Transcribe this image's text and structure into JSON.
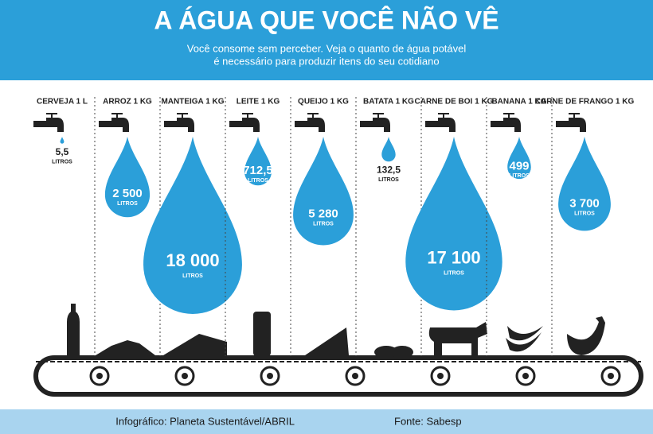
{
  "chart_data": {
    "type": "drop",
    "title": "A ÁGUA QUE VOCÊ NÃO VÊ",
    "subtitle": [
      "Você consome sem perceber. Veja o quanto de água potável",
      "é necessário para produzir itens do seu cotidiano"
    ],
    "categories": [
      "CERVEJA 1 L",
      "ARROZ 1 KG",
      "MANTEIGA 1 KG",
      "LEITE 1 KG",
      "QUEIJO 1 KG",
      "BATATA 1 KG",
      "CARNE DE BOI 1 KG",
      "BANANA 1 KG",
      "CARNE DE FRANGO 1 KG"
    ],
    "values": [
      5.5,
      2500,
      18000,
      712.5,
      5280,
      132.5,
      17100,
      499,
      3700
    ],
    "value_labels": [
      "5,5",
      "2 500",
      "18 000",
      "712,5",
      "5 280",
      "132,5",
      "17 100",
      "499",
      "3 700"
    ],
    "unit": "LITROS",
    "color": "#2b9fd9",
    "credits": [
      "Infográfico: Planeta Sustentável/ABRIL",
      "Fonte: Sabesp"
    ]
  }
}
